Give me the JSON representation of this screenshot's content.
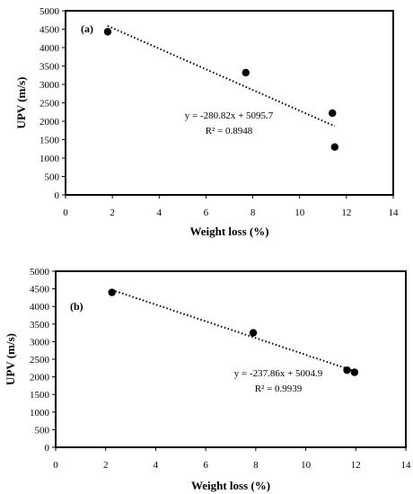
{
  "colors": {
    "marker": "#000000",
    "trendline": "#000000",
    "frame": "#000000",
    "background": "#ffffff"
  },
  "chart_data": [
    {
      "type": "scatter",
      "panel_label": "(a)",
      "xlabel": "Weight loss (%)",
      "ylabel": "UPV (m/s)",
      "xlim": [
        0,
        14
      ],
      "ylim": [
        0,
        5000
      ],
      "xticks": [
        0,
        2,
        4,
        6,
        8,
        10,
        12,
        14
      ],
      "yticks": [
        0,
        500,
        1000,
        1500,
        2000,
        2500,
        3000,
        3500,
        4000,
        4500,
        5000
      ],
      "grid": false,
      "points": [
        {
          "x": 1.8,
          "y": 4430
        },
        {
          "x": 7.7,
          "y": 3320
        },
        {
          "x": 11.4,
          "y": 2220
        },
        {
          "x": 11.5,
          "y": 1300
        }
      ],
      "trendline": {
        "type": "linear",
        "x_start": 1.8,
        "x_end": 11.5,
        "slope": -280.82,
        "intercept": 5095.7
      },
      "equation": "y = -280.82x + 5095.7",
      "r_squared": "R² = 0.8948"
    },
    {
      "type": "scatter",
      "panel_label": "(b)",
      "xlabel": "Weight loss (%)",
      "ylabel": "UPV (m/s)",
      "xlim": [
        0,
        14
      ],
      "ylim": [
        0,
        5000
      ],
      "xticks": [
        0,
        2,
        4,
        6,
        8,
        10,
        12,
        14
      ],
      "yticks": [
        0,
        500,
        1000,
        1500,
        2000,
        2500,
        3000,
        3500,
        4000,
        4500,
        5000
      ],
      "grid": false,
      "points": [
        {
          "x": 2.25,
          "y": 4400
        },
        {
          "x": 7.9,
          "y": 3250
        },
        {
          "x": 11.65,
          "y": 2190
        },
        {
          "x": 11.95,
          "y": 2130
        }
      ],
      "trendline": {
        "type": "linear",
        "x_start": 2.25,
        "x_end": 11.95,
        "slope": -237.86,
        "intercept": 5004.9
      },
      "equation": "y = -237.86x + 5004.9",
      "r_squared": "R² = 0.9939"
    }
  ]
}
